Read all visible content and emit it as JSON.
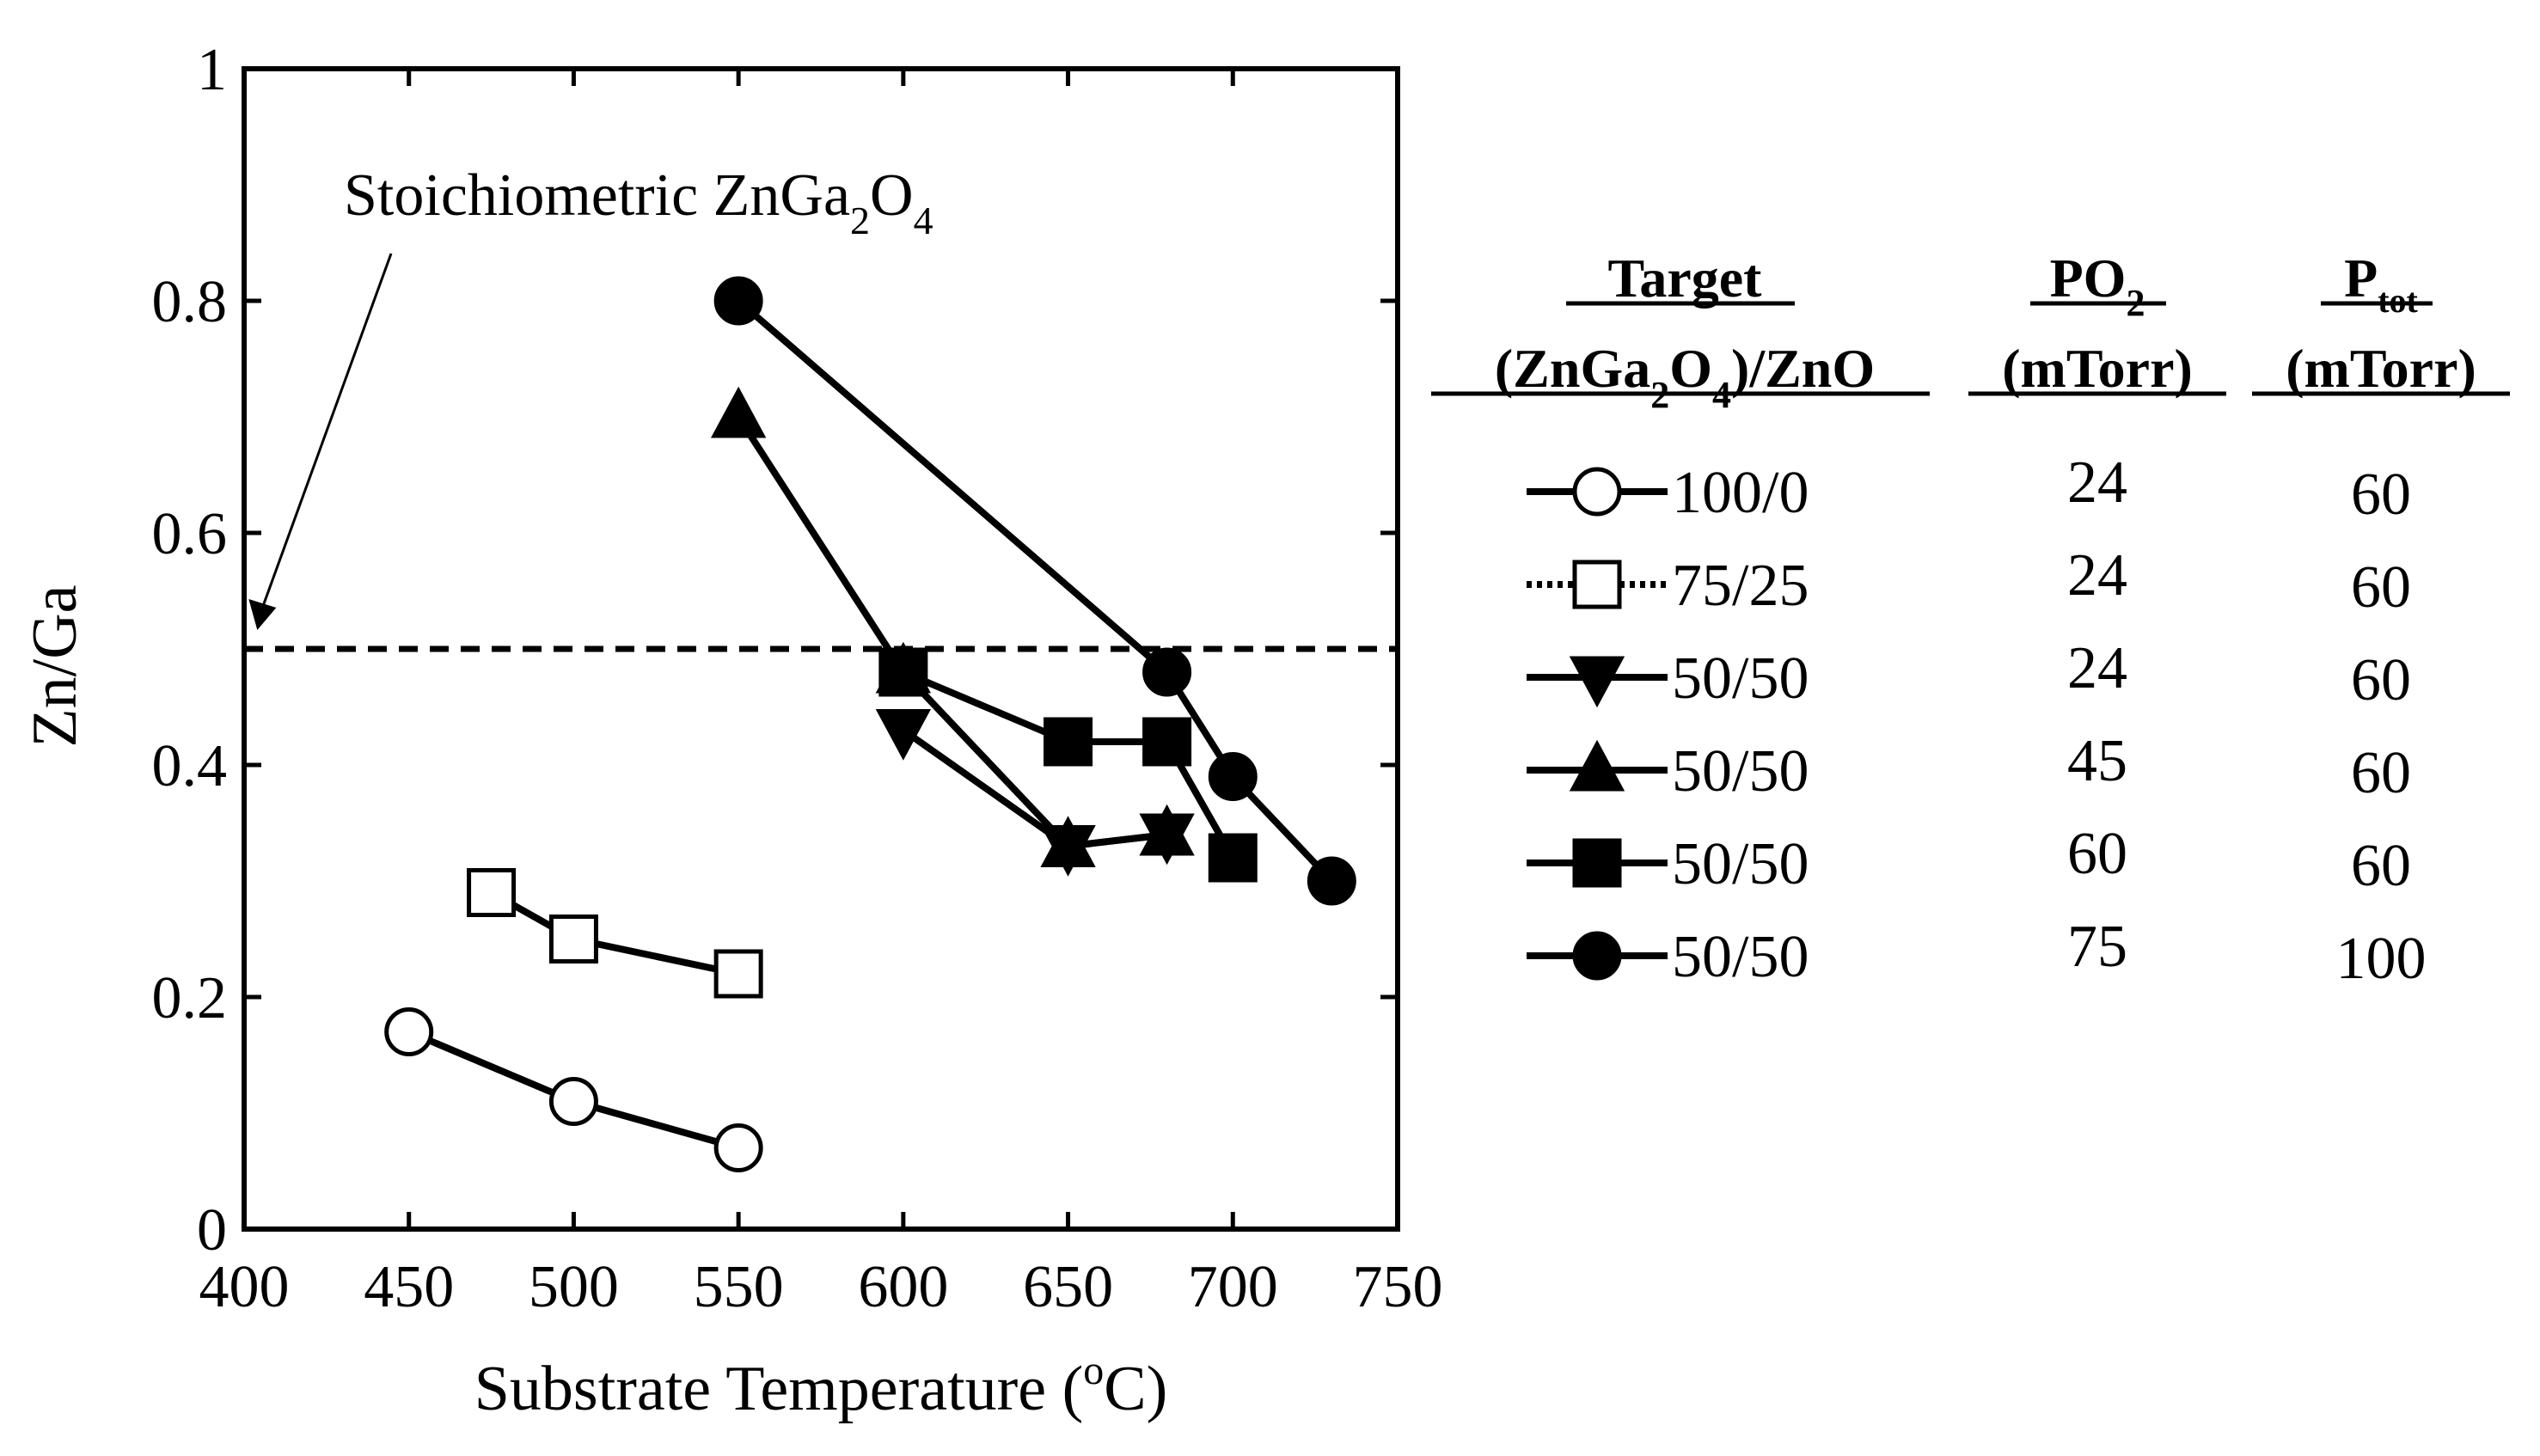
{
  "chart_data": {
    "type": "line",
    "title": "",
    "xlabel_main": "Substrate Temperature (",
    "xlabel_sup": "o",
    "xlabel_tail": "C)",
    "ylabel": "Zn/Ga",
    "xlim": [
      400,
      750
    ],
    "ylim": [
      0,
      1
    ],
    "x_ticks": [
      "400",
      "450",
      "500",
      "550",
      "600",
      "650",
      "700",
      "750"
    ],
    "y_ticks": [
      "0",
      "0.2",
      "0.4",
      "0.6",
      "0.8",
      "1"
    ],
    "reference_line": {
      "y": 0.5,
      "style": "dashed"
    },
    "annotation": {
      "text": "Stoichiometric ZnGa",
      "sub1": "2",
      "mid": "O",
      "sub2": "4",
      "points_to_y": 0.5
    },
    "legend_headers": {
      "target_line1": "Target",
      "target_line2_a": "(ZnGa",
      "target_line2_sub1": "2",
      "target_line2_b": "O",
      "target_line2_sub2": "4",
      "target_line2_c": ")/ZnO",
      "po2_main": "PO",
      "po2_sub": "2",
      "po2_unit": "(mTorr)",
      "ptot_main": "P",
      "ptot_sub": "tot",
      "ptot_unit": "(mTorr)"
    },
    "series": [
      {
        "name": "100/0",
        "marker": "circle-open",
        "po2": "24",
        "ptot": "60",
        "points": [
          [
            450,
            0.17
          ],
          [
            500,
            0.11
          ],
          [
            550,
            0.07
          ]
        ]
      },
      {
        "name": "75/25",
        "marker": "square-open",
        "po2": "24",
        "ptot": "60",
        "points": [
          [
            475,
            0.29
          ],
          [
            500,
            0.25
          ],
          [
            550,
            0.22
          ]
        ]
      },
      {
        "name": "50/50",
        "marker": "triangle-down-filled",
        "po2": "24",
        "ptot": "60",
        "points": [
          [
            600,
            0.43
          ],
          [
            650,
            0.33
          ],
          [
            680,
            0.34
          ]
        ]
      },
      {
        "name": "50/50",
        "marker": "triangle-up-filled",
        "po2": "45",
        "ptot": "60",
        "points": [
          [
            550,
            0.7
          ],
          [
            600,
            0.48
          ],
          [
            650,
            0.33
          ],
          [
            680,
            0.34
          ]
        ]
      },
      {
        "name": "50/50",
        "marker": "square-filled",
        "po2": "60",
        "ptot": "60",
        "points": [
          [
            600,
            0.48
          ],
          [
            650,
            0.42
          ],
          [
            680,
            0.42
          ],
          [
            700,
            0.32
          ]
        ]
      },
      {
        "name": "50/50",
        "marker": "circle-filled",
        "po2": "75",
        "ptot": "100",
        "points": [
          [
            550,
            0.8
          ],
          [
            680,
            0.48
          ],
          [
            700,
            0.39
          ],
          [
            730,
            0.3
          ]
        ]
      }
    ]
  }
}
